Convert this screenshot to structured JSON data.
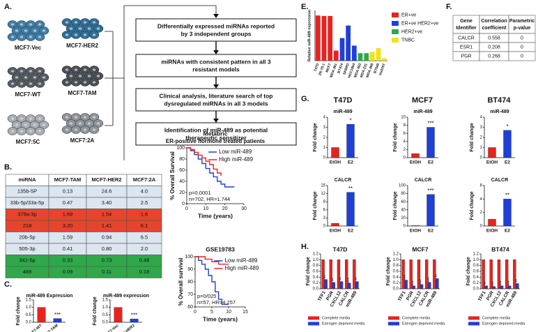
{
  "panel_labels": [
    "A.",
    "B.",
    "C.",
    "D.",
    "E.",
    "F.",
    "G.",
    "H."
  ],
  "panel_a": {
    "cell_lines": [
      "MCF7-Vec",
      "MCF7-HER2",
      "MCF7-WT",
      "MCF7-TAM",
      "MCF7:5C",
      "MCF7:2A"
    ],
    "steps": [
      [
        "Differentially expressed miRNAs reported",
        "by 3 independent groups"
      ],
      [
        "miRNAs with consistent pattern in all 3",
        "resistant models"
      ],
      [
        "Clinical analysis, literature search of top",
        "dysregulated miRNAs in all 3 models"
      ],
      [
        "Identification of miR-489 as potential",
        "therapeutic sensitizer"
      ]
    ]
  },
  "panel_b": {
    "header": [
      "miRNA",
      "MCF7-TAM",
      "MCF7-HER2",
      "MCF7:2A"
    ],
    "rows": [
      [
        "135b-5P",
        "0.13",
        "24.6",
        "4.0"
      ],
      [
        "33b-5p/33a-5p",
        "0.47",
        "3.40",
        "2.5"
      ],
      [
        "378a-3p",
        "1.69",
        "1.54",
        "1.6"
      ],
      [
        "218",
        "3.20",
        "1.41",
        "6.1"
      ],
      [
        "20b-5p",
        "1.59",
        "0.94",
        "6.5"
      ],
      [
        "505-3p",
        "0.41",
        "0.80",
        "2.0"
      ],
      [
        "342-5p",
        "0.33",
        "0.73",
        "0.48"
      ],
      [
        "489",
        "0.09",
        "0.11",
        "0.18"
      ]
    ],
    "row_colors": [
      "#dce6f1",
      "#dce6f1",
      "#e8432c",
      "#e8432c",
      "#dce6f1",
      "#dce6f1",
      "#2fa84a",
      "#2fa84a"
    ]
  },
  "panel_f": {
    "header": [
      [
        "Gene",
        "Identifier"
      ],
      [
        "Correlation",
        "coefficient"
      ],
      [
        "Parametric",
        "p-value"
      ]
    ],
    "rows": [
      [
        "CALCR",
        "0.558",
        "0"
      ],
      [
        "ESR1",
        "0.208",
        "0"
      ],
      [
        "PGR",
        "0.268",
        "0"
      ]
    ]
  },
  "panel_g_columns": [
    "T47D",
    "MCF7",
    "BT474"
  ],
  "chart_data": [
    {
      "type": "bar",
      "title": "miR-489 Expression",
      "ylabel": "Fold change",
      "categories": [
        "MCF7-WT",
        "MCF7-TAM"
      ],
      "values": [
        1.0,
        0.25
      ],
      "colors": [
        "#e8231f",
        "#1f3fd8"
      ],
      "ylim": [
        0,
        1.5
      ],
      "yticks": [
        {
          "value": 0,
          "label": "0.0"
        },
        {
          "value": 0.5,
          "label": "0.5"
        },
        {
          "value": 1,
          "label": "1.0"
        },
        {
          "value": 1.5,
          "label": "1.5"
        }
      ],
      "annotations": [
        null,
        "***"
      ]
    },
    {
      "type": "bar",
      "title": "miR-489 expression",
      "ylabel": "Fold change",
      "categories": [
        "MCF7-Vec",
        "MCF7-HER2"
      ],
      "values": [
        1.0,
        0.22
      ],
      "colors": [
        "#e8231f",
        "#1f3fd8"
      ],
      "ylim": [
        0,
        1.5
      ],
      "yticks": [
        {
          "value": 0,
          "label": "0.0"
        },
        {
          "value": 0.5,
          "label": "0.5"
        },
        {
          "value": 1,
          "label": "1.0"
        },
        {
          "value": 1.5,
          "label": "1.5"
        }
      ],
      "annotations": [
        null,
        "***"
      ]
    },
    {
      "type": "survival",
      "title": "Metabric",
      "subtitle": "ER-positive hormone treated patients",
      "ylabel": "% Overall Survival",
      "xlabel": "Time (years)",
      "xlim": [
        0,
        30
      ],
      "xticks": [
        0,
        10,
        20,
        30
      ],
      "ylim": [
        0,
        100
      ],
      "yticks": [
        0,
        20,
        40,
        60,
        80,
        100
      ],
      "series": [
        {
          "name": "Low miR-489",
          "color": "#1f3fd8",
          "x": [
            0,
            2,
            4,
            6,
            8,
            10,
            12,
            14,
            16,
            18,
            20,
            25
          ],
          "values": [
            100,
            95,
            88,
            80,
            72,
            63,
            55,
            48,
            40,
            35,
            30,
            30
          ]
        },
        {
          "name": "High miR-489",
          "color": "#e8231f",
          "x": [
            0,
            2,
            4,
            6,
            8,
            10,
            12,
            14,
            16,
            18
          ],
          "values": [
            100,
            97,
            92,
            87,
            82,
            76,
            70,
            62,
            55,
            50
          ]
        }
      ],
      "annotations": [
        "p=0.0001",
        "n=702, HR=1.744"
      ]
    },
    {
      "type": "survival",
      "title": "GSE19783",
      "ylabel": "% Overall survival",
      "xlabel": "Time (years)",
      "xlim": [
        0,
        15
      ],
      "xticks": [
        0,
        5,
        10,
        15
      ],
      "ylim": [
        60,
        100
      ],
      "yticks": [
        60,
        70,
        80,
        90,
        100
      ],
      "series": [
        {
          "name": "Low miR-489",
          "color": "#1f3fd8",
          "x": [
            0,
            1,
            2,
            3,
            4,
            5,
            6,
            7,
            8,
            10
          ],
          "values": [
            100,
            97,
            94,
            90,
            85,
            80,
            72,
            66,
            62,
            62
          ]
        },
        {
          "name": "High miR-489",
          "color": "#e8231f",
          "x": [
            0,
            3,
            5,
            7,
            10
          ],
          "values": [
            100,
            98,
            96,
            94,
            94
          ]
        }
      ],
      "annotations": [
        "p=0/025",
        "n=57, HR=4.257"
      ]
    },
    {
      "type": "bar",
      "ylabel": "Relative miR-489 expression",
      "categories": [
        "T47D",
        "ZR-75-1",
        "MCF7",
        "MDA-361",
        "BT474",
        "SKBR3",
        "HCC1954",
        "MDA-453",
        "MDA-231",
        "MDA-468",
        "BT549",
        "Hs578T"
      ],
      "values": [
        1800,
        1780,
        1780,
        400,
        900,
        1400,
        600,
        300,
        300,
        350,
        500,
        100
      ],
      "colors": [
        "#e8231f",
        "#e8231f",
        "#e8231f",
        "#e8231f",
        "#1f3fd8",
        "#1f3fd8",
        "#1f3fd8",
        "#2fa84a",
        "#2fa84a",
        "#f2e21c",
        "#f2e21c",
        "#f2e21c"
      ],
      "ylim": [
        0,
        2000
      ],
      "legend": [
        {
          "name": "ER+ve",
          "color": "#e8231f"
        },
        {
          "name": "ER+ve HER2+ve",
          "color": "#1f3fd8"
        },
        {
          "name": "HER2+ve",
          "color": "#2fa84a"
        },
        {
          "name": "TNBC",
          "color": "#f2e21c"
        }
      ]
    },
    {
      "type": "bar",
      "title": "miR-489",
      "ylabel": "Fold change",
      "categories": [
        "EtOH",
        "E2"
      ],
      "values": [
        1,
        3.3
      ],
      "colors": [
        "#e8231f",
        "#1f3fd8"
      ],
      "ylim": [
        0,
        4
      ],
      "yticks": [
        0,
        1,
        2,
        3,
        4
      ],
      "annotations": [
        null,
        "*"
      ]
    },
    {
      "type": "bar",
      "title": "miR-489",
      "ylabel": "Fold change",
      "categories": [
        "EtOH",
        "E2"
      ],
      "values": [
        1,
        7.5
      ],
      "colors": [
        "#e8231f",
        "#1f3fd8"
      ],
      "ylim": [
        0,
        10
      ],
      "yticks": [
        0,
        2,
        4,
        6,
        8,
        10
      ],
      "annotations": [
        null,
        "***"
      ]
    },
    {
      "type": "bar",
      "title": "miR-489",
      "ylabel": "Fold change",
      "categories": [
        "EtOH",
        "E2"
      ],
      "values": [
        1,
        2.7
      ],
      "colors": [
        "#e8231f",
        "#1f3fd8"
      ],
      "ylim": [
        0,
        4
      ],
      "yticks": [
        0,
        1,
        2,
        3,
        4
      ],
      "annotations": [
        null,
        "*"
      ]
    },
    {
      "type": "bar",
      "title": "CALCR",
      "ylabel": "Fold change",
      "categories": [
        "EtOH",
        "E2"
      ],
      "values": [
        1,
        12.5
      ],
      "colors": [
        "#e8231f",
        "#1f3fd8"
      ],
      "ylim": [
        0,
        15
      ],
      "yticks": [
        0,
        3,
        6,
        9,
        12,
        15
      ],
      "annotations": [
        null,
        "**"
      ]
    },
    {
      "type": "bar",
      "title": "CALCR",
      "ylabel": "Fold change",
      "categories": [
        "EtOH",
        "E2"
      ],
      "values": [
        1,
        78
      ],
      "colors": [
        "#e8231f",
        "#1f3fd8"
      ],
      "ylim": [
        0,
        100
      ],
      "yticks": [
        0,
        20,
        40,
        60,
        80,
        100
      ],
      "annotations": [
        null,
        "***"
      ]
    },
    {
      "type": "bar",
      "title": "CALCR",
      "ylabel": "Fold change",
      "categories": [
        "EtOH",
        "E2"
      ],
      "values": [
        1,
        4
      ],
      "colors": [
        "#e8231f",
        "#1f3fd8"
      ],
      "ylim": [
        0,
        6
      ],
      "yticks": [
        0,
        2,
        4,
        6
      ],
      "annotations": [
        null,
        "**"
      ]
    },
    {
      "type": "grouped_bar",
      "title": "T47D",
      "ylabel": "Fold change",
      "categories": [
        "TFF1",
        "PGR",
        "CXCL12",
        "CALCR",
        "miR-489"
      ],
      "series": [
        {
          "name": "Complete media",
          "color": "#e8231f",
          "values": [
            1,
            1,
            1,
            1,
            1
          ]
        },
        {
          "name": "Estrogen deprived media",
          "color": "#1f3fd8",
          "values": [
            0.32,
            0.22,
            0.25,
            0.2,
            0.25
          ]
        }
      ],
      "ylim": [
        0,
        1.2
      ],
      "yticks": [
        {
          "value": 0,
          "label": "0.0"
        },
        {
          "value": 0.2,
          "label": "0.2"
        },
        {
          "value": 0.4,
          "label": "0.4"
        },
        {
          "value": 0.6,
          "label": "0.6"
        },
        {
          "value": 0.8,
          "label": "0.8"
        },
        {
          "value": 1,
          "label": "1.0"
        },
        {
          "value": 1.2,
          "label": "1.2"
        }
      ],
      "annotations": [
        "**",
        "**",
        "**",
        "***",
        "**"
      ]
    },
    {
      "type": "grouped_bar",
      "title": "MCF7",
      "ylabel": "Fold change",
      "categories": [
        "TFF1",
        "PGR",
        "CXCL12",
        "CALCR",
        "miR-489"
      ],
      "series": [
        {
          "name": "Complete media",
          "color": "#e8231f",
          "values": [
            1,
            1,
            1,
            1,
            1
          ]
        },
        {
          "name": "Estrogen deprived media",
          "color": "#1f3fd8",
          "values": [
            0.3,
            0.1,
            0.15,
            0.22,
            0.35
          ]
        }
      ],
      "ylim": [
        0,
        1.2
      ],
      "yticks": [
        {
          "value": 0,
          "label": "0.0"
        },
        {
          "value": 0.2,
          "label": "0.2"
        },
        {
          "value": 0.4,
          "label": "0.4"
        },
        {
          "value": 0.6,
          "label": "0.6"
        },
        {
          "value": 0.8,
          "label": "0.8"
        },
        {
          "value": 1,
          "label": "1.0"
        },
        {
          "value": 1.2,
          "label": "1.2"
        }
      ],
      "annotations": [
        "***",
        "***",
        "***",
        "***",
        "**"
      ]
    },
    {
      "type": "grouped_bar",
      "title": "BT474",
      "ylabel": "Fold change",
      "categories": [
        "TFF1",
        "PGR",
        "CXCL12",
        "CALCR",
        "miR-489"
      ],
      "series": [
        {
          "name": "Complete media",
          "color": "#e8231f",
          "values": [
            1,
            1,
            1,
            1,
            1
          ]
        },
        {
          "name": "Estrogen deprived media",
          "color": "#1f3fd8",
          "values": [
            0.1,
            0.08,
            0.1,
            0.1,
            0.18
          ]
        }
      ],
      "ylim": [
        0,
        1.2
      ],
      "yticks": [
        {
          "value": 0,
          "label": "0.0"
        },
        {
          "value": 0.2,
          "label": "0.2"
        },
        {
          "value": 0.4,
          "label": "0.4"
        },
        {
          "value": 0.6,
          "label": "0.6"
        },
        {
          "value": 0.8,
          "label": "0.8"
        },
        {
          "value": 1,
          "label": "1.0"
        },
        {
          "value": 1.2,
          "label": "1.2"
        }
      ],
      "annotations": [
        "**",
        "***",
        "***",
        "***",
        "**"
      ]
    }
  ]
}
